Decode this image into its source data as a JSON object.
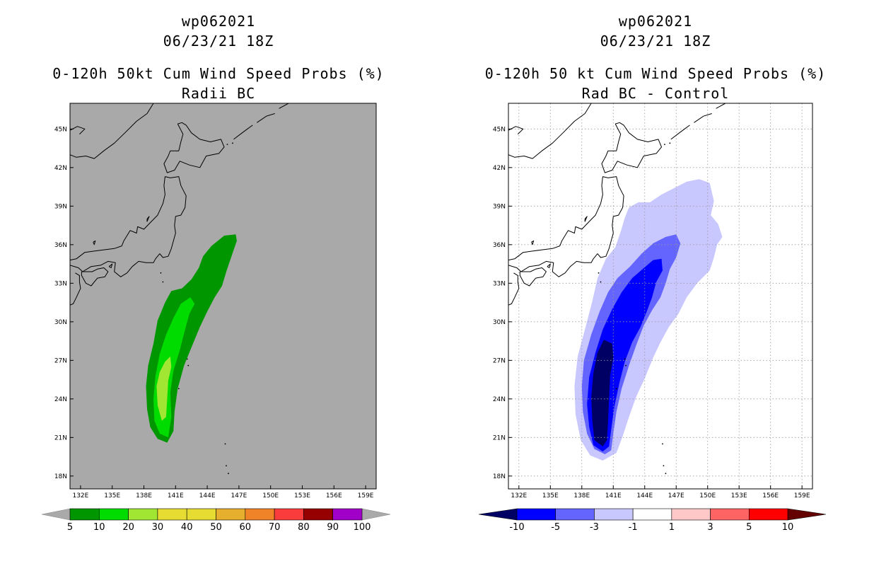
{
  "chart_data": [
    {
      "type": "heatmap",
      "title_lines": [
        "wp062021",
        "06/23/21 18Z",
        "0-120h 50kt Cum Wind Speed Probs (%)",
        "Radii BC"
      ],
      "xlim": [
        131,
        160
      ],
      "ylim": [
        17,
        47
      ],
      "x_ticks": [
        132,
        135,
        138,
        141,
        144,
        147,
        150,
        153,
        156,
        159
      ],
      "x_tick_labels": [
        "132E",
        "135E",
        "138E",
        "141E",
        "144E",
        "147E",
        "150E",
        "153E",
        "156E",
        "159E"
      ],
      "y_ticks": [
        18,
        21,
        24,
        27,
        30,
        33,
        36,
        39,
        42,
        45
      ],
      "y_tick_labels": [
        "18N",
        "21N",
        "24N",
        "27N",
        "30N",
        "33N",
        "36N",
        "39N",
        "42N",
        "45N"
      ],
      "grid": false,
      "background_color": "#a9a9a9",
      "colorbar": {
        "levels": [
          "5",
          "10",
          "20",
          "30",
          "40",
          "50",
          "60",
          "70",
          "80",
          "90",
          "100"
        ],
        "colors": [
          "#009600",
          "#00c800",
          "#00dc00",
          "#a0e632",
          "#e6dc32",
          "#e6af2d",
          "#f08228",
          "#fa3c3c",
          "#f00082",
          "#a000c8",
          "#8200dc"
        ],
        "bins": [
          "5-10",
          "10-20",
          "20-30",
          "30-40",
          "40-50",
          "50-60",
          "60-70",
          "70-80",
          "80-90",
          "90-100"
        ],
        "bin_colors": [
          "#009600",
          "#00dc00",
          "#a0e632",
          "#e6dc32",
          "#e6dc32",
          "#e6af2d",
          "#f08228",
          "#fa3c3c",
          "#960000",
          "#a000c8"
        ],
        "under_color": "#a9a9a9",
        "over_color": "#a9a9a9"
      },
      "fields": [
        {
          "level": "5-10",
          "color": "#009600",
          "polygon": [
            [
              140.2,
              20.6
            ],
            [
              139.3,
              20.9
            ],
            [
              138.6,
              21.8
            ],
            [
              138.3,
              23.2
            ],
            [
              138.2,
              25.0
            ],
            [
              138.4,
              26.6
            ],
            [
              138.9,
              28.3
            ],
            [
              139.3,
              30.1
            ],
            [
              140.0,
              31.5
            ],
            [
              140.6,
              32.4
            ],
            [
              141.6,
              32.6
            ],
            [
              142.5,
              33.3
            ],
            [
              143.2,
              34.2
            ],
            [
              143.6,
              35.1
            ],
            [
              144.4,
              35.9
            ],
            [
              145.6,
              36.7
            ],
            [
              146.7,
              36.8
            ],
            [
              146.8,
              36.3
            ],
            [
              146.3,
              35.1
            ],
            [
              145.8,
              33.9
            ],
            [
              145.4,
              32.8
            ],
            [
              144.7,
              31.9
            ],
            [
              144.0,
              30.8
            ],
            [
              143.3,
              29.6
            ],
            [
              142.6,
              28.2
            ],
            [
              141.8,
              26.6
            ],
            [
              141.2,
              24.8
            ],
            [
              140.9,
              23.0
            ],
            [
              140.8,
              21.5
            ]
          ]
        },
        {
          "level": "10-20",
          "color": "#00dc00",
          "polygon": [
            [
              140.3,
              21.0
            ],
            [
              139.5,
              21.3
            ],
            [
              139.0,
              22.3
            ],
            [
              138.9,
              24.0
            ],
            [
              139.1,
              25.8
            ],
            [
              139.5,
              27.5
            ],
            [
              140.1,
              29.0
            ],
            [
              140.8,
              30.3
            ],
            [
              141.5,
              31.4
            ],
            [
              142.4,
              31.9
            ],
            [
              142.8,
              31.4
            ],
            [
              142.3,
              30.6
            ],
            [
              141.9,
              29.4
            ],
            [
              141.4,
              27.8
            ],
            [
              140.8,
              26.2
            ],
            [
              140.5,
              24.5
            ],
            [
              140.6,
              22.6
            ]
          ]
        },
        {
          "level": "20-30",
          "color": "#a0e632",
          "polygon": [
            [
              139.7,
              22.3
            ],
            [
              139.3,
              23.5
            ],
            [
              139.2,
              25.0
            ],
            [
              139.5,
              26.1
            ],
            [
              140.0,
              26.9
            ],
            [
              140.5,
              27.3
            ],
            [
              140.6,
              26.5
            ],
            [
              140.3,
              25.4
            ],
            [
              140.2,
              24.0
            ],
            [
              140.1,
              22.6
            ]
          ]
        }
      ]
    },
    {
      "type": "heatmap",
      "title_lines": [
        "wp062021",
        "06/23/21 18Z",
        "0-120h 50 kt Cum Wind Speed Probs (%)",
        "Rad BC - Control"
      ],
      "xlim": [
        131,
        160
      ],
      "ylim": [
        17,
        47
      ],
      "x_ticks": [
        132,
        135,
        138,
        141,
        144,
        147,
        150,
        153,
        156,
        159
      ],
      "x_tick_labels": [
        "132E",
        "135E",
        "138E",
        "141E",
        "144E",
        "147E",
        "150E",
        "153E",
        "156E",
        "159E"
      ],
      "y_ticks": [
        18,
        21,
        24,
        27,
        30,
        33,
        36,
        39,
        42,
        45
      ],
      "y_tick_labels": [
        "18N",
        "21N",
        "24N",
        "27N",
        "30N",
        "33N",
        "36N",
        "39N",
        "42N",
        "45N"
      ],
      "grid": true,
      "background_color": "#ffffff",
      "colorbar": {
        "levels": [
          "-10",
          "-5",
          "-3",
          "-1",
          "1",
          "3",
          "5",
          "10"
        ],
        "bins": [
          "<-10",
          "-10 to -5",
          "-5 to -3",
          "-3 to -1",
          "-1 to 1",
          "1 to 3",
          "3 to 5",
          "5 to 10",
          ">10"
        ],
        "bin_colors": [
          "#000064",
          "#0000ff",
          "#6464ff",
          "#c8c8ff",
          "#ffffff",
          "#ffc8c8",
          "#ff6464",
          "#ff0000",
          "#640000"
        ]
      },
      "fields": [
        {
          "level": "-1 to -3",
          "color": "#c8c8ff",
          "polygon": [
            [
              140.0,
              19.2
            ],
            [
              138.8,
              19.6
            ],
            [
              137.9,
              20.8
            ],
            [
              137.4,
              22.8
            ],
            [
              137.3,
              25.0
            ],
            [
              137.6,
              27.3
            ],
            [
              138.3,
              29.4
            ],
            [
              139.0,
              31.6
            ],
            [
              139.5,
              33.4
            ],
            [
              140.3,
              34.9
            ],
            [
              141.2,
              35.8
            ],
            [
              141.7,
              37.0
            ],
            [
              142.1,
              38.1
            ],
            [
              142.5,
              38.9
            ],
            [
              143.4,
              39.3
            ],
            [
              144.5,
              39.3
            ],
            [
              145.6,
              39.9
            ],
            [
              146.8,
              40.4
            ],
            [
              148.0,
              40.9
            ],
            [
              149.2,
              41.1
            ],
            [
              150.2,
              40.8
            ],
            [
              150.6,
              39.4
            ],
            [
              150.3,
              38.3
            ],
            [
              151.0,
              37.6
            ],
            [
              151.4,
              36.6
            ],
            [
              150.9,
              36.0
            ],
            [
              150.6,
              35.0
            ],
            [
              150.2,
              34.0
            ],
            [
              149.0,
              33.0
            ],
            [
              148.0,
              31.9
            ],
            [
              147.2,
              30.6
            ],
            [
              146.3,
              29.6
            ],
            [
              145.5,
              28.4
            ],
            [
              144.8,
              27.2
            ],
            [
              144.0,
              25.6
            ],
            [
              143.2,
              24.2
            ],
            [
              142.5,
              22.6
            ],
            [
              141.9,
              21.1
            ],
            [
              141.3,
              19.8
            ]
          ]
        },
        {
          "level": "-3 to -5",
          "color": "#6464ff",
          "polygon": [
            [
              140.2,
              19.7
            ],
            [
              139.2,
              20.1
            ],
            [
              138.5,
              21.3
            ],
            [
              138.1,
              23.0
            ],
            [
              138.0,
              25.0
            ],
            [
              138.2,
              27.0
            ],
            [
              138.9,
              29.0
            ],
            [
              139.7,
              30.8
            ],
            [
              140.5,
              32.3
            ],
            [
              141.4,
              33.4
            ],
            [
              142.6,
              34.3
            ],
            [
              143.7,
              35.3
            ],
            [
              144.8,
              36.1
            ],
            [
              146.0,
              36.6
            ],
            [
              147.0,
              36.8
            ],
            [
              147.4,
              36.1
            ],
            [
              147.0,
              35.0
            ],
            [
              146.4,
              34.1
            ],
            [
              146.0,
              33.0
            ],
            [
              145.5,
              31.9
            ],
            [
              144.7,
              30.9
            ],
            [
              143.9,
              29.7
            ],
            [
              143.2,
              28.2
            ],
            [
              142.5,
              26.6
            ],
            [
              141.8,
              24.8
            ],
            [
              141.3,
              23.0
            ],
            [
              141.0,
              21.3
            ],
            [
              140.8,
              20.0
            ]
          ]
        },
        {
          "level": "-5 to -10",
          "color": "#0000ff",
          "polygon": [
            [
              140.0,
              19.9
            ],
            [
              139.1,
              20.4
            ],
            [
              138.7,
              21.8
            ],
            [
              138.5,
              23.6
            ],
            [
              138.7,
              25.7
            ],
            [
              139.3,
              27.6
            ],
            [
              140.0,
              29.4
            ],
            [
              140.9,
              31.0
            ],
            [
              141.8,
              32.3
            ],
            [
              142.8,
              33.4
            ],
            [
              143.8,
              34.1
            ],
            [
              144.8,
              34.8
            ],
            [
              145.6,
              34.9
            ],
            [
              145.7,
              34.0
            ],
            [
              145.1,
              33.1
            ],
            [
              144.7,
              31.9
            ],
            [
              144.2,
              30.8
            ],
            [
              143.6,
              29.6
            ],
            [
              142.8,
              28.4
            ],
            [
              142.1,
              26.9
            ],
            [
              141.6,
              25.3
            ],
            [
              141.1,
              23.4
            ],
            [
              140.8,
              21.6
            ],
            [
              140.6,
              20.3
            ]
          ]
        },
        {
          "level": "<-10",
          "color": "#000064",
          "polygon": [
            [
              140.0,
              20.3
            ],
            [
              139.2,
              20.8
            ],
            [
              139.0,
              22.3
            ],
            [
              138.9,
              24.1
            ],
            [
              139.1,
              26.0
            ],
            [
              139.5,
              27.6
            ],
            [
              140.1,
              28.6
            ],
            [
              140.9,
              28.3
            ],
            [
              141.0,
              27.2
            ],
            [
              140.7,
              25.8
            ],
            [
              140.6,
              24.0
            ],
            [
              140.5,
              22.2
            ],
            [
              140.4,
              20.8
            ]
          ]
        }
      ]
    }
  ]
}
